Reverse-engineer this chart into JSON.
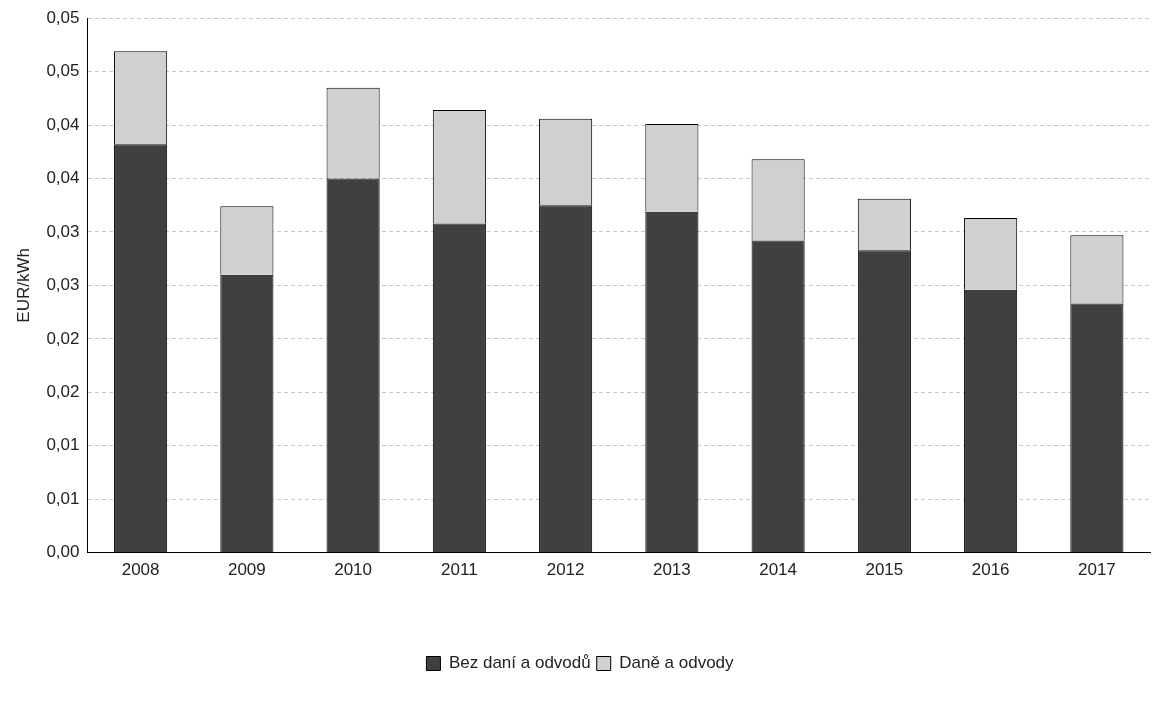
{
  "chart_data": {
    "type": "bar",
    "stacked": true,
    "ylabel": "EUR/kWh",
    "categories": [
      "2008",
      "2009",
      "2010",
      "2011",
      "2012",
      "2013",
      "2014",
      "2015",
      "2016",
      "2017"
    ],
    "series": [
      {
        "name": "Bez daní a odvodů",
        "color": "#404040",
        "values": [
          0.0382,
          0.026,
          0.035,
          0.0308,
          0.0325,
          0.0319,
          0.0292,
          0.0283,
          0.0246,
          0.0233
        ]
      },
      {
        "name": "Daně a odvody",
        "color": "#d0d0d0",
        "values": [
          0.0087,
          0.0064,
          0.0085,
          0.0106,
          0.0081,
          0.0082,
          0.0076,
          0.0048,
          0.0067,
          0.0064
        ]
      }
    ],
    "ylim": [
      0,
      0.05
    ],
    "yticks": [
      {
        "value": 0,
        "label": "0,00"
      },
      {
        "value": 0.005,
        "label": "0,01"
      },
      {
        "value": 0.01,
        "label": "0,01"
      },
      {
        "value": 0.015,
        "label": "0,02"
      },
      {
        "value": 0.02,
        "label": "0,02"
      },
      {
        "value": 0.025,
        "label": "0,03"
      },
      {
        "value": 0.03,
        "label": "0,03"
      },
      {
        "value": 0.035,
        "label": "0,04"
      },
      {
        "value": 0.04,
        "label": "0,04"
      },
      {
        "value": 0.045,
        "label": "0,05"
      },
      {
        "value": 0.05,
        "label": "0,05"
      }
    ],
    "grid": "y",
    "legend": "bottom"
  }
}
